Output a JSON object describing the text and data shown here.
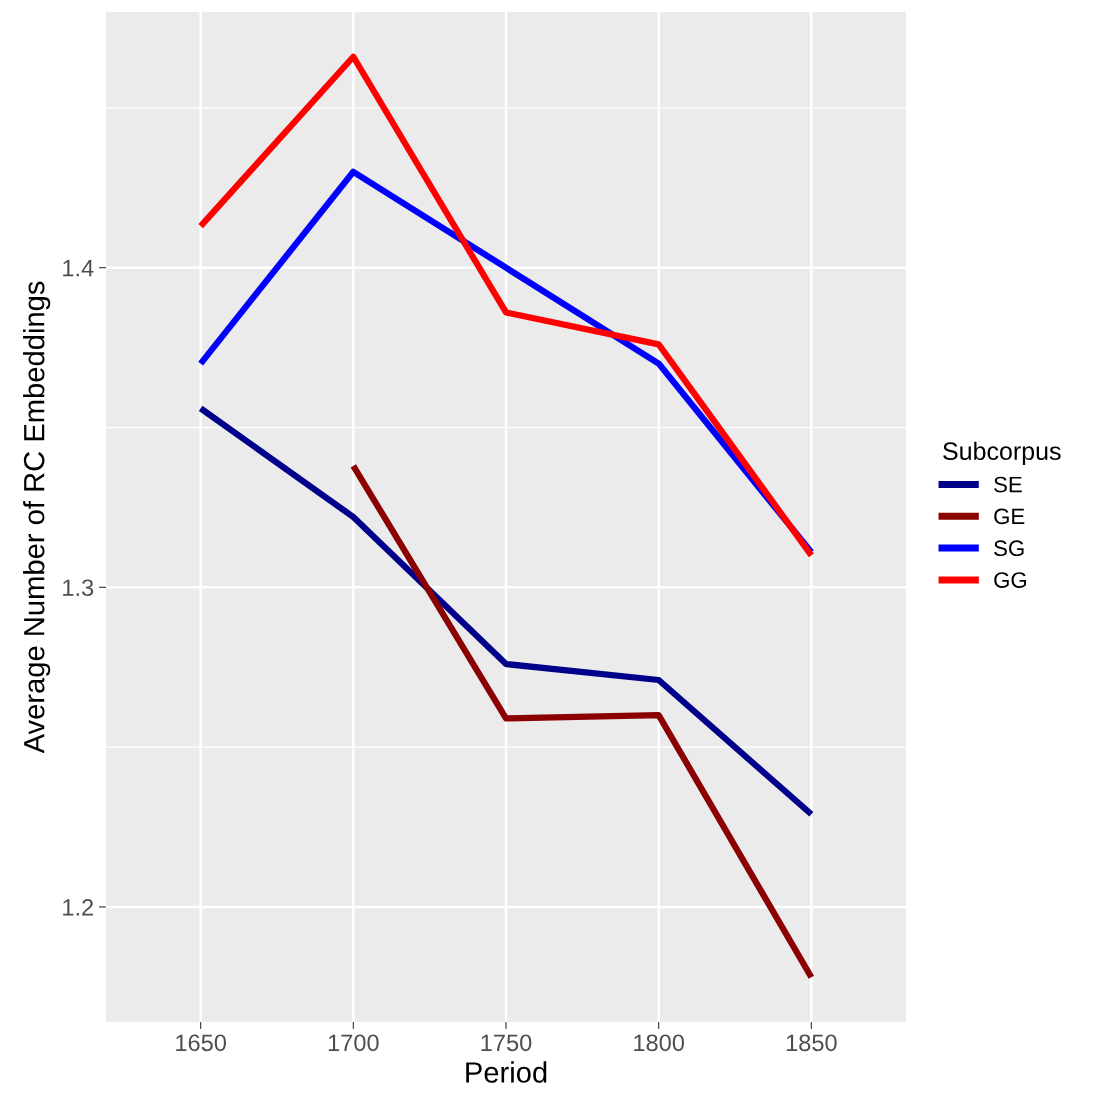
{
  "chart_data": {
    "type": "line",
    "xlabel": "Period",
    "ylabel": "Average Number of RC Embeddings",
    "legend_title": "Subcorpus",
    "x": [
      1650,
      1700,
      1750,
      1800,
      1850
    ],
    "series": [
      {
        "name": "SE",
        "color": "#00008b",
        "values": [
          1.356,
          1.322,
          1.276,
          1.271,
          1.229
        ]
      },
      {
        "name": "GE",
        "color": "#8b0000",
        "values": [
          null,
          1.338,
          1.259,
          1.26,
          1.178
        ]
      },
      {
        "name": "SG",
        "color": "#0000ff",
        "values": [
          1.37,
          1.43,
          1.4,
          1.37,
          1.311
        ]
      },
      {
        "name": "GG",
        "color": "#ff0000",
        "values": [
          1.413,
          1.466,
          1.386,
          1.376,
          1.31
        ]
      }
    ],
    "xlim": [
      1619,
      1881
    ],
    "ylim": [
      1.164,
      1.48
    ],
    "xticks": [
      1650,
      1700,
      1750,
      1800,
      1850
    ],
    "yticks": [
      1.2,
      1.3,
      1.4
    ],
    "grid": true,
    "legend": "right",
    "line_style": "solid",
    "marker": "none"
  }
}
